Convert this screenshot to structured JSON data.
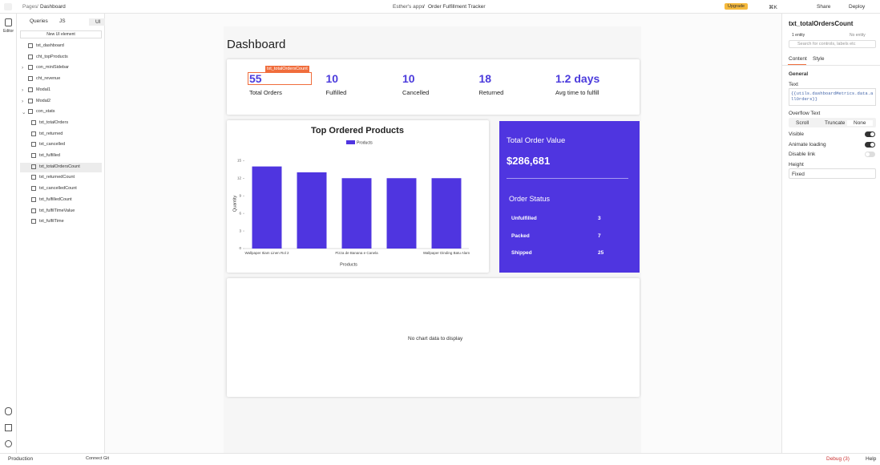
{
  "topbar": {
    "crumb_root": "Pages",
    "crumb_page": "Dashboard",
    "workspace": "Esther's apps",
    "app_name": "Order Fulfillment Tracker",
    "upgrade": "Upgrade",
    "shortcut": "⌘K",
    "share": "Share",
    "deploy": "Deploy"
  },
  "rail": {
    "editor": "Editor"
  },
  "explorer": {
    "tabs": [
      "Queries",
      "JS",
      "UI"
    ],
    "new_button": "New UI element",
    "widgets": [
      "txt_dashboard",
      "cht_topProducts",
      "con_miniSidebar",
      "cht_revenue",
      "Modal1",
      "Modal2",
      "con_stats",
      "txt_totalOrders",
      "txt_returned",
      "txt_cancelled",
      "txt_fulfilled",
      "txt_totalOrdersCount",
      "txt_returnedCount",
      "txt_cancelledCount",
      "txt_fulfilledCount",
      "txt_fulfilTimeValue",
      "txt_fulfilTime"
    ]
  },
  "canvas": {
    "title": "Dashboard",
    "selected_tag": "txt_totalOrdersCount",
    "stats": [
      {
        "value": 55,
        "label": "Total Orders"
      },
      {
        "value": 10,
        "label": "Fulfilled"
      },
      {
        "value": 10,
        "label": "Cancelled"
      },
      {
        "value": 18,
        "label": "Returned"
      },
      {
        "value": "1.2 days",
        "label": "Avg time to fulfill"
      }
    ],
    "order_value": {
      "title": "Total Order Value",
      "amount": "$286,681",
      "status_title": "Order Status",
      "rows": [
        {
          "name": "Unfulfilled",
          "count": 3
        },
        {
          "name": "Packed",
          "count": 7
        },
        {
          "name": "Shipped",
          "count": 25
        }
      ]
    },
    "empty_chart": "No chart data to display"
  },
  "chart_data": {
    "type": "bar",
    "title": "Top Ordered Products",
    "x_label": "Products",
    "y_label": "Quantity",
    "color": "#4f35e0",
    "categories": [
      "Wallpaper Itiam Linen Rol 2",
      null,
      "Pizza de Banana e Canela",
      null,
      "Wallpaper Dinding Batu Alam"
    ],
    "series": [
      {
        "name": "Products",
        "color": "#4f35e0",
        "values": [
          14,
          13,
          12,
          12,
          12
        ]
      }
    ],
    "ylim": [
      0,
      16
    ],
    "yticks": [
      0,
      3,
      6,
      9,
      12,
      15
    ],
    "grid": true
  },
  "properties": {
    "widget_name": "txt_totalOrdersCount",
    "entity": "1 entity",
    "no_entity": "No entity",
    "search": "Search for controls, labels etc",
    "tabs": [
      "Content",
      "Style"
    ],
    "section": "General",
    "text_label": "Text",
    "text_value": "{{utils.dashboardMetrics.data.allOrders}}",
    "overflow_label": "Overflow Text",
    "overflow_options": [
      "Scroll",
      "Truncate",
      "None"
    ],
    "toggles": [
      "Visible",
      "Animate loading",
      "Disable link"
    ],
    "height_label": "Height",
    "height_value": "Fixed"
  },
  "footer": {
    "env": "Production",
    "git": "Connect Git",
    "debug": "Debug (3)",
    "help": "Help"
  }
}
